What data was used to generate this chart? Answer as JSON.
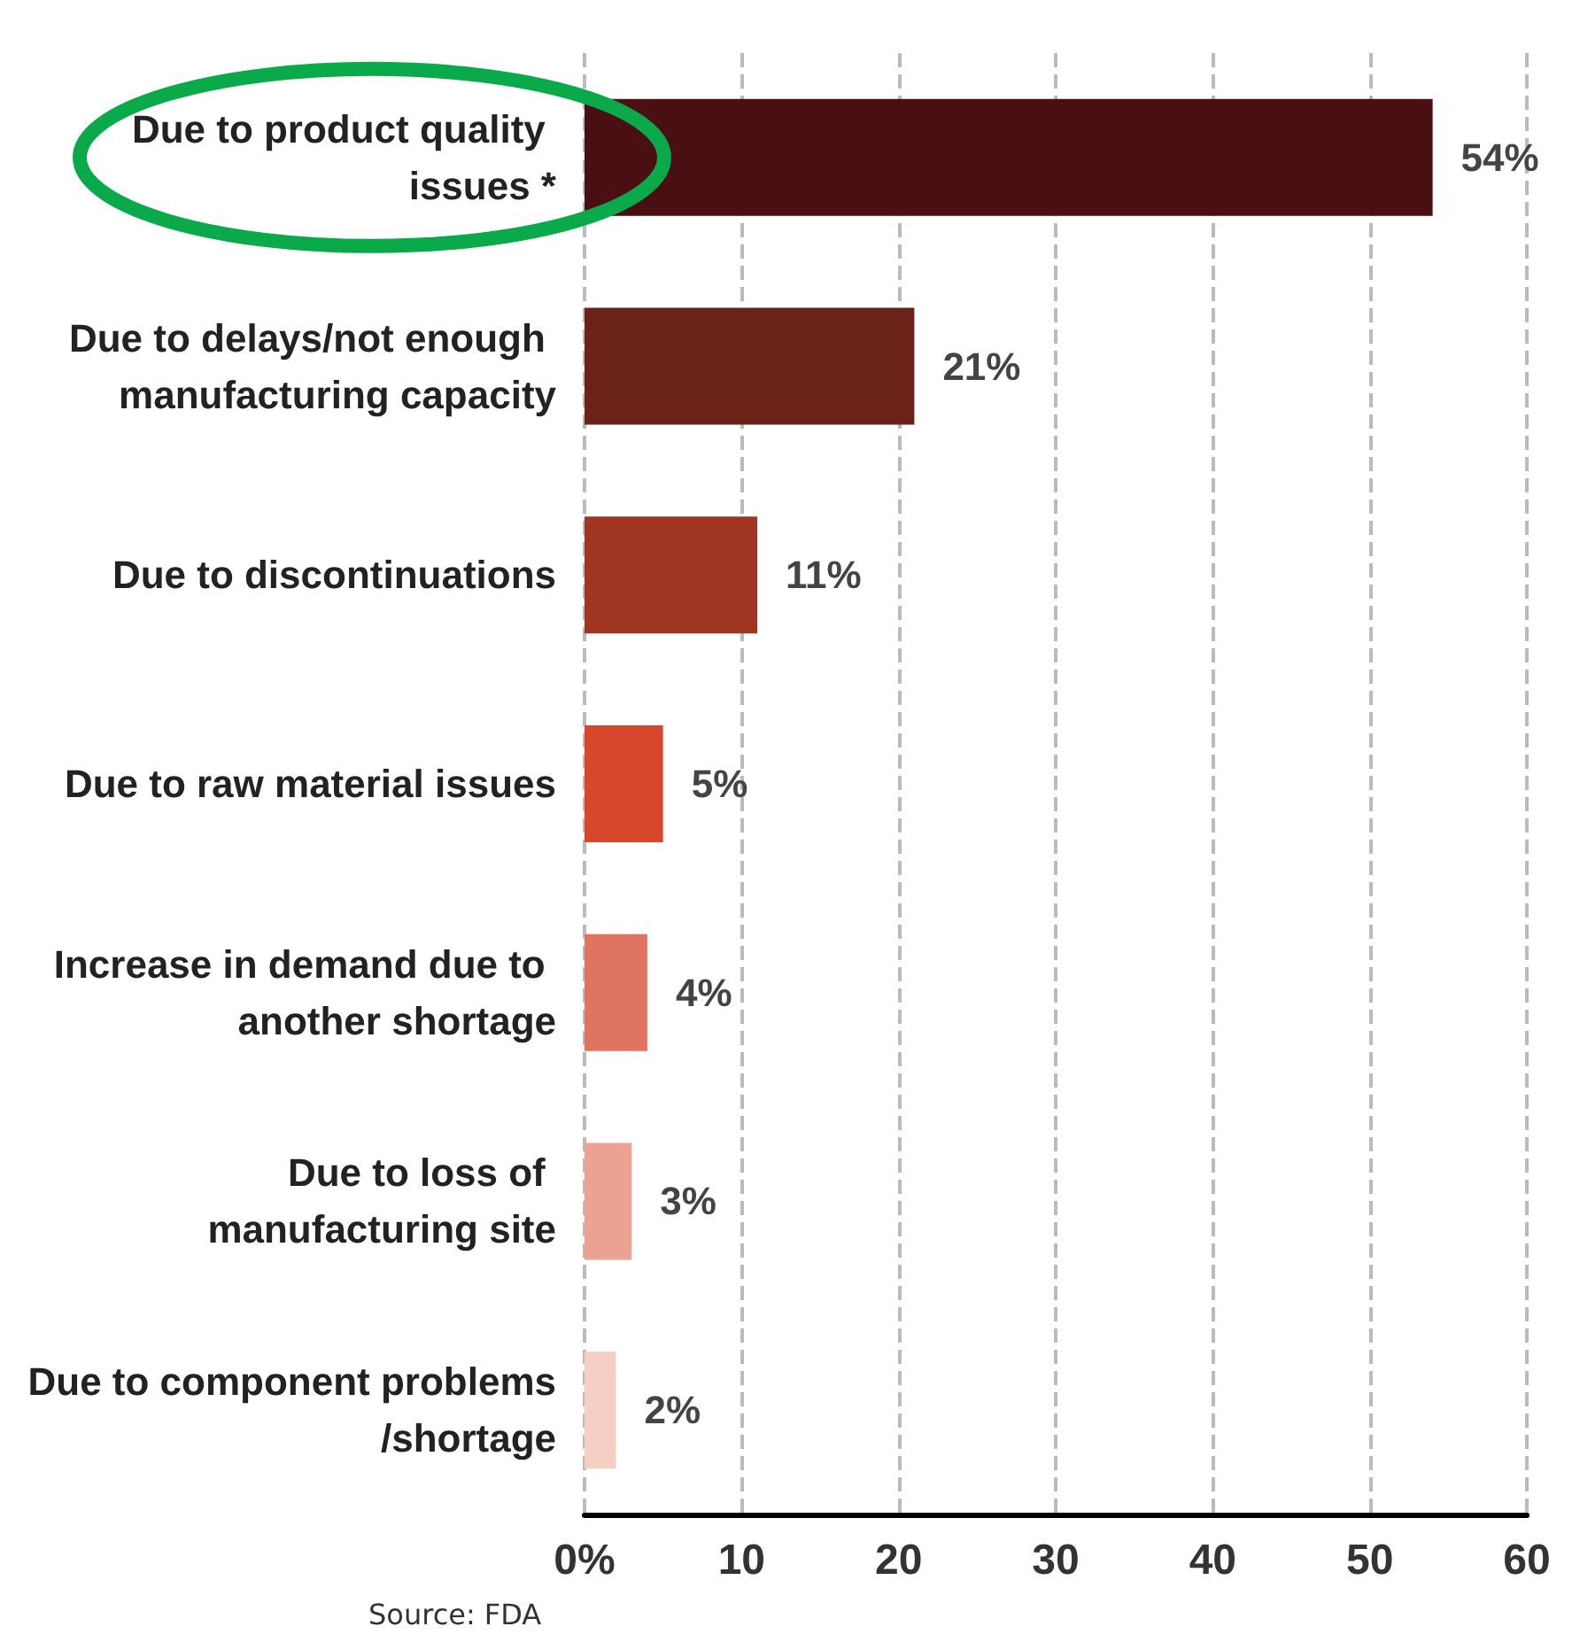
{
  "chart_data": {
    "type": "bar",
    "orientation": "horizontal",
    "categories": [
      "Due to product quality issues *",
      "Due to delays/not enough manufacturing capacity",
      "Due to discontinuations",
      "Due to raw material issues",
      "Increase in demand due to another shortage",
      "Due to loss of manufacturing site",
      "Due to component problems/shortage"
    ],
    "values": [
      54,
      21,
      11,
      5,
      4,
      3,
      2
    ],
    "value_labels": [
      "54%",
      "21%",
      "11%",
      "5%",
      "4%",
      "3%",
      "2%"
    ],
    "colors": [
      "#4a0f12",
      "#6b2218",
      "#a03522",
      "#d6472c",
      "#e07462",
      "#eba292",
      "#f5cfc4"
    ],
    "xlim": [
      0,
      60
    ],
    "xticks": [
      {
        "value": 0,
        "label": "0%"
      },
      10,
      20,
      30,
      40,
      50,
      60
    ],
    "grid": "x",
    "annotations": [
      "Source: FDA"
    ]
  }
}
